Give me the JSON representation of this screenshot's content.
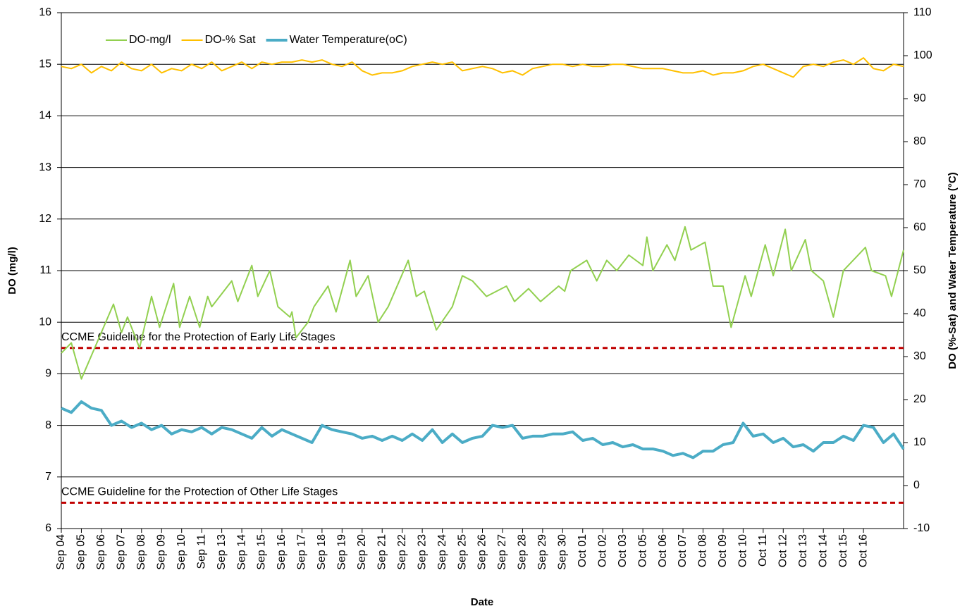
{
  "chart_data": {
    "type": "line",
    "x_label": "Date",
    "y_label": "DO (mg/l)",
    "y2_label": "DO (%-Sat) and Water Temperature  (°C)",
    "xlim": [
      0,
      42
    ],
    "xticks": [
      {
        "value": 0,
        "label": "Sep 04"
      },
      {
        "value": 1,
        "label": "Sep 05"
      },
      {
        "value": 2,
        "label": "Sep 06"
      },
      {
        "value": 3,
        "label": "Sep 07"
      },
      {
        "value": 4,
        "label": "Sep 08"
      },
      {
        "value": 5,
        "label": "Sep 09"
      },
      {
        "value": 6,
        "label": "Sep 10"
      },
      {
        "value": 7,
        "label": "Sep 11"
      },
      {
        "value": 8,
        "label": "Sep 13"
      },
      {
        "value": 9,
        "label": "Sep 14"
      },
      {
        "value": 10,
        "label": "Sep 15"
      },
      {
        "value": 11,
        "label": "Sep 16"
      },
      {
        "value": 12,
        "label": "Sep 17"
      },
      {
        "value": 13,
        "label": "Sep 18"
      },
      {
        "value": 14,
        "label": "Sep 19"
      },
      {
        "value": 15,
        "label": "Sep 20"
      },
      {
        "value": 16,
        "label": "Sep 21"
      },
      {
        "value": 17,
        "label": "Sep 22"
      },
      {
        "value": 18,
        "label": "Sep 23"
      },
      {
        "value": 19,
        "label": "Sep 24"
      },
      {
        "value": 20,
        "label": "Sep 25"
      },
      {
        "value": 21,
        "label": "Sep 26"
      },
      {
        "value": 22,
        "label": "Sep 27"
      },
      {
        "value": 23,
        "label": "Sep 28"
      },
      {
        "value": 24,
        "label": "Sep 29"
      },
      {
        "value": 25,
        "label": "Sep 30"
      },
      {
        "value": 26,
        "label": "Oct 01"
      },
      {
        "value": 27,
        "label": "Oct 02"
      },
      {
        "value": 28,
        "label": "Oct 03"
      },
      {
        "value": 29,
        "label": "Oct 05"
      },
      {
        "value": 30,
        "label": "Oct 06"
      },
      {
        "value": 31,
        "label": "Oct 07"
      },
      {
        "value": 32,
        "label": "Oct 08"
      },
      {
        "value": 33,
        "label": "Oct 09"
      },
      {
        "value": 34,
        "label": "Oct 10"
      },
      {
        "value": 35,
        "label": "Oct 11"
      },
      {
        "value": 36,
        "label": "Oct 12"
      },
      {
        "value": 37,
        "label": "Oct 13"
      },
      {
        "value": 38,
        "label": "Oct 14"
      },
      {
        "value": 39,
        "label": "Oct 15"
      },
      {
        "value": 40,
        "label": "Oct 16"
      }
    ],
    "ylim": [
      6,
      16
    ],
    "yticks": [
      6,
      7,
      8,
      9,
      10,
      11,
      12,
      13,
      14,
      15,
      16
    ],
    "y2lim": [
      -10,
      110
    ],
    "y2ticks": [
      -10,
      0,
      10,
      20,
      30,
      40,
      50,
      60,
      70,
      80,
      90,
      100,
      110
    ],
    "grid": true,
    "legend": "top-left",
    "reference_lines": [
      {
        "value": 9.5,
        "label": "CCME Guideline for the Protection of Early Life Stages",
        "color": "#c00000"
      },
      {
        "value": 6.5,
        "label": "CCME Guideline for the Protection of Other Life Stages",
        "color": "#c00000"
      }
    ],
    "series": [
      {
        "name": "DO-mg/l",
        "color": "#92d050",
        "width": 2,
        "x": [
          0,
          0.5,
          1.0,
          2.6,
          3.0,
          3.3,
          3.9,
          4.5,
          4.9,
          5.6,
          5.9,
          6.4,
          6.9,
          7.3,
          7.5,
          8.5,
          8.8,
          9.5,
          9.8,
          10.4,
          10.8,
          11.4,
          11.5,
          11.7,
          12.3,
          12.6,
          13.3,
          13.7,
          14.4,
          14.7,
          15.3,
          15.8,
          16.3,
          17.3,
          17.7,
          18.1,
          18.7,
          19.5,
          20.0,
          20.5,
          21.2,
          22.2,
          22.6,
          23.3,
          23.9,
          24.8,
          25.1,
          25.4,
          26.2,
          26.7,
          27.2,
          27.7,
          28.3,
          29.0,
          29.2,
          29.5,
          30.2,
          30.6,
          31.1,
          31.4,
          32.1,
          32.5,
          33.0,
          33.4,
          34.1,
          34.4,
          35.1,
          35.5,
          36.1,
          36.4,
          37.1,
          37.4,
          38.0,
          38.5,
          39.0,
          40.1,
          40.4,
          41.1,
          41.4,
          42.0
        ],
        "values": [
          9.4,
          9.6,
          8.9,
          10.35,
          9.8,
          10.1,
          9.5,
          10.5,
          9.9,
          10.75,
          9.9,
          10.5,
          9.9,
          10.5,
          10.3,
          10.8,
          10.4,
          11.1,
          10.5,
          11.0,
          10.3,
          10.1,
          10.2,
          9.7,
          10.0,
          10.3,
          10.7,
          10.2,
          11.2,
          10.5,
          10.9,
          10.0,
          10.3,
          11.2,
          10.5,
          10.6,
          9.85,
          10.3,
          10.9,
          10.8,
          10.5,
          10.7,
          10.4,
          10.65,
          10.4,
          10.7,
          10.6,
          11.0,
          11.2,
          10.8,
          11.2,
          11.0,
          11.3,
          11.1,
          11.65,
          11.0,
          11.5,
          11.2,
          11.85,
          11.4,
          11.55,
          10.7,
          10.7,
          9.9,
          10.9,
          10.5,
          11.5,
          10.9,
          11.8,
          11.0,
          11.6,
          11.0,
          10.8,
          10.1,
          11.0,
          11.45,
          11.0,
          10.9,
          10.5,
          11.4
        ]
      },
      {
        "name": "DO-% Sat",
        "color": "#ffc000",
        "width": 2,
        "axis": "y2",
        "x": [
          0,
          0.5,
          1,
          1.5,
          2,
          2.5,
          3,
          3.5,
          4,
          4.5,
          5,
          5.5,
          6,
          6.5,
          7,
          7.5,
          8,
          8.5,
          9,
          9.5,
          10,
          10.5,
          11,
          11.5,
          12,
          12.5,
          13,
          13.5,
          14,
          14.5,
          15,
          15.5,
          16,
          16.5,
          17,
          17.5,
          18,
          18.5,
          19,
          19.5,
          20,
          20.5,
          21,
          21.5,
          22,
          22.5,
          23,
          23.5,
          24,
          24.5,
          25,
          25.5,
          26,
          26.5,
          27,
          27.5,
          28,
          28.5,
          29,
          29.5,
          30,
          30.5,
          31,
          31.5,
          32,
          32.5,
          33,
          33.5,
          34,
          34.5,
          35,
          35.5,
          36,
          36.5,
          37,
          37.5,
          38,
          38.5,
          39,
          39.5,
          40,
          40.5,
          41,
          41.5,
          42
        ],
        "values": [
          97.5,
          97,
          98,
          96,
          97.5,
          96.5,
          98.5,
          97,
          96.5,
          98,
          96,
          97,
          96.5,
          98,
          97,
          98.5,
          96.5,
          97.5,
          98.5,
          97,
          98.5,
          98,
          98.5,
          98.5,
          99,
          98.5,
          99,
          98,
          97.5,
          98.5,
          96.5,
          95.5,
          96,
          96,
          96.5,
          97.5,
          98,
          98.5,
          98,
          98.5,
          96.5,
          97,
          97.5,
          97,
          96,
          96.5,
          95.5,
          97,
          97.5,
          98,
          98,
          97.5,
          98,
          97.5,
          97.5,
          98,
          98,
          97.5,
          97,
          97,
          97,
          96.5,
          96,
          96,
          96.5,
          95.5,
          96,
          96,
          96.5,
          97.5,
          98,
          97,
          96,
          95,
          97.5,
          98,
          97.5,
          98.5,
          99,
          98,
          99.5,
          97,
          96.5,
          98,
          97.5
        ]
      },
      {
        "name": "Water Temperature(oC)",
        "color": "#4bacc6",
        "width": 4,
        "axis": "y2",
        "x": [
          0,
          0.5,
          1,
          1.5,
          2,
          2.5,
          3,
          3.5,
          4,
          4.5,
          5,
          5.5,
          6,
          6.5,
          7,
          7.5,
          8,
          8.5,
          9,
          9.5,
          10,
          10.5,
          11,
          11.5,
          12,
          12.5,
          13,
          13.5,
          14,
          14.5,
          15,
          15.5,
          16,
          16.5,
          17,
          17.5,
          18,
          18.5,
          19,
          19.5,
          20,
          20.5,
          21,
          21.5,
          22,
          22.5,
          23,
          23.5,
          24,
          24.5,
          25,
          25.5,
          26,
          26.5,
          27,
          27.5,
          28,
          28.5,
          29,
          29.5,
          30,
          30.5,
          31,
          31.5,
          32,
          32.5,
          33,
          33.5,
          34,
          34.5,
          35,
          35.5,
          36,
          36.5,
          37,
          37.5,
          38,
          38.5,
          39,
          39.5,
          40,
          40.5,
          41,
          41.5,
          42
        ],
        "values": [
          18,
          17,
          19.5,
          18,
          17.5,
          14,
          15,
          13.5,
          14.5,
          13,
          14,
          12,
          13,
          12.5,
          13.5,
          12,
          13.5,
          13,
          12,
          11,
          13.5,
          11.5,
          13,
          12,
          11,
          10,
          14,
          13,
          12.5,
          12,
          11,
          11.5,
          10.5,
          11.5,
          10.5,
          12,
          10.5,
          13,
          10,
          12,
          10,
          11,
          11.5,
          14,
          13.5,
          14,
          11,
          11.5,
          11.5,
          12,
          12,
          12.5,
          10.5,
          11,
          9.5,
          10,
          9,
          9.5,
          8.5,
          8.5,
          8,
          7,
          7.5,
          6.5,
          8,
          8,
          9.5,
          10,
          14.5,
          11.5,
          12,
          10,
          11,
          9,
          9.5,
          8,
          10,
          10,
          11.5,
          10.5,
          14,
          13.5,
          10,
          12,
          8.5
        ]
      }
    ]
  }
}
